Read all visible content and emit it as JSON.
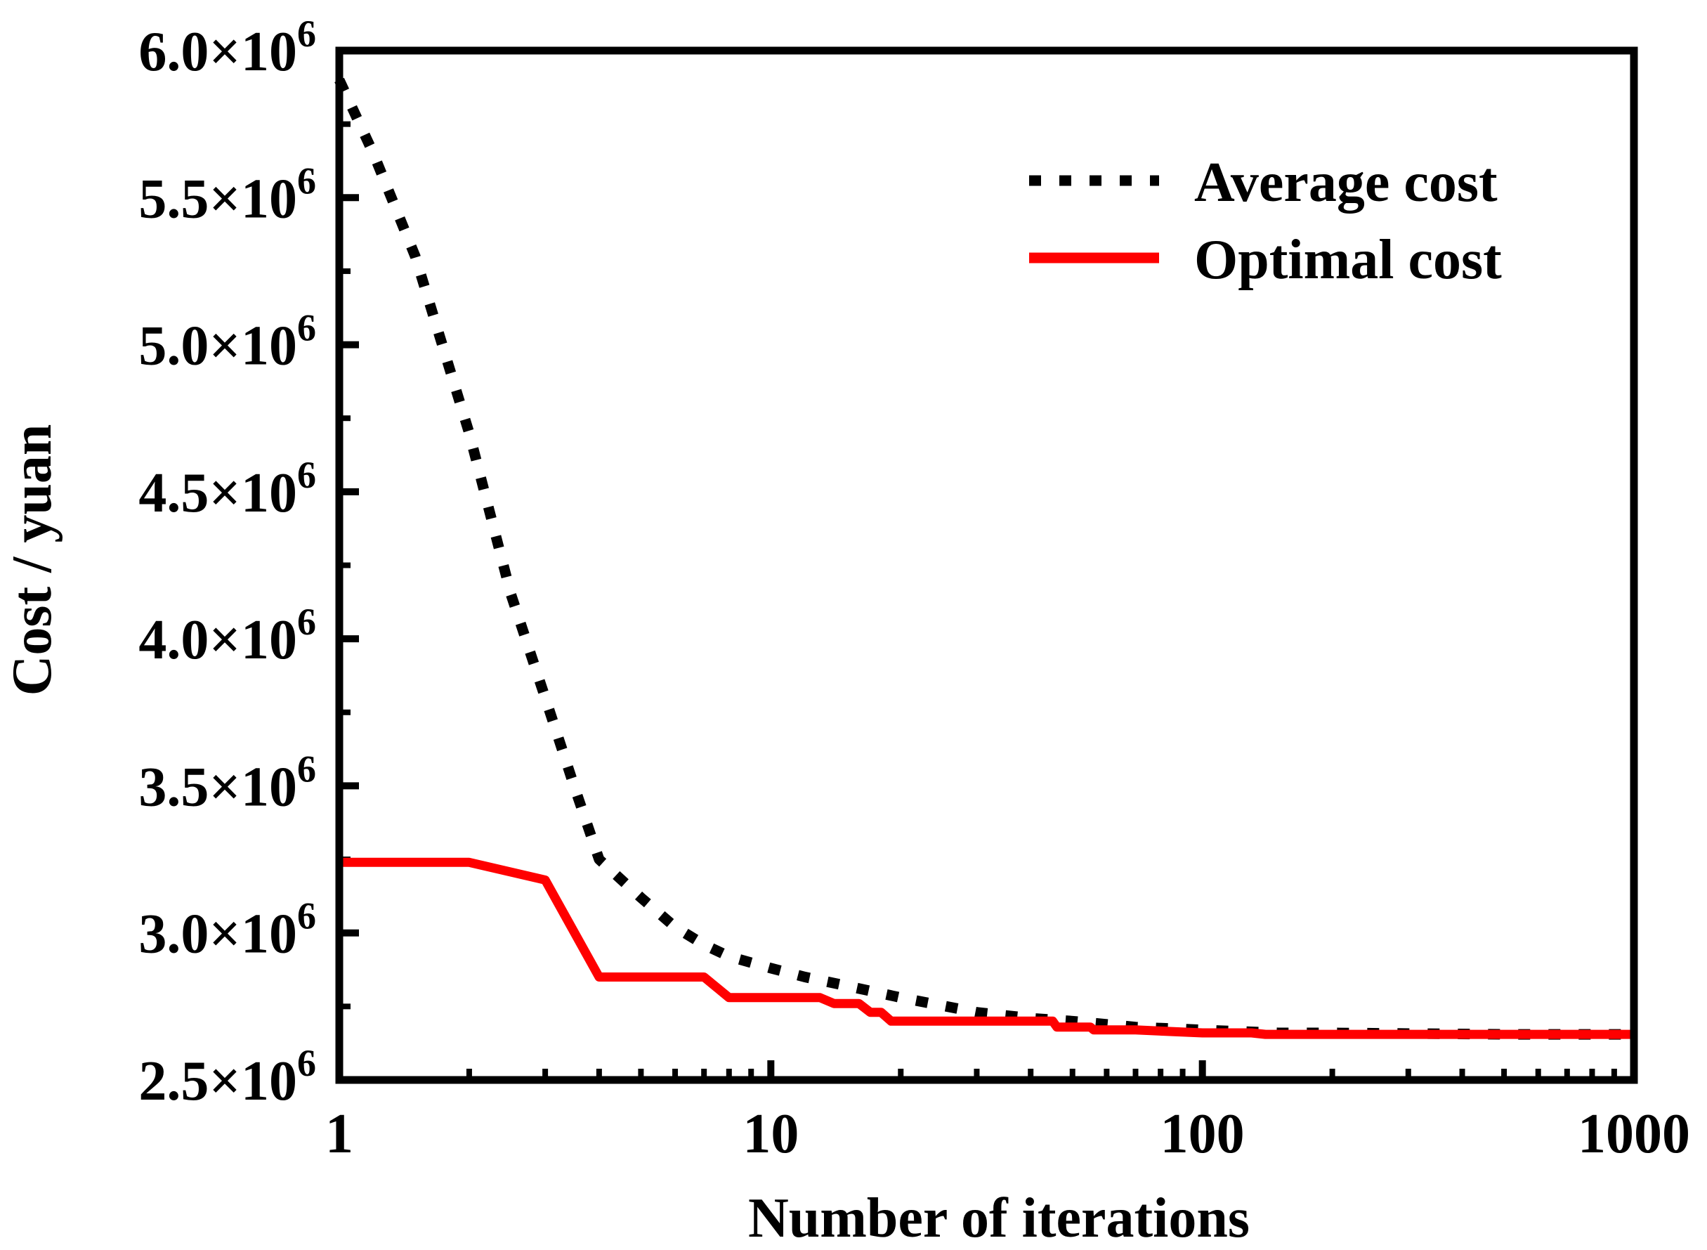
{
  "chart_data": {
    "type": "line",
    "title": "",
    "xlabel": "Number of iterations",
    "ylabel": "Cost / yuan",
    "xscale": "log",
    "xlim": [
      1,
      1000
    ],
    "ylim": [
      2500000,
      6000000
    ],
    "grid": false,
    "legend_position": "top-right",
    "x_ticks": [
      {
        "value": 1,
        "label": "1"
      },
      {
        "value": 10,
        "label": "10"
      },
      {
        "value": 100,
        "label": "100"
      },
      {
        "value": 1000,
        "label": "1000"
      }
    ],
    "y_ticks": [
      {
        "value": 2500000,
        "mantissa": "2.5",
        "times": "×10",
        "exp": "6"
      },
      {
        "value": 3000000,
        "mantissa": "3.0",
        "times": "×10",
        "exp": "6"
      },
      {
        "value": 3500000,
        "mantissa": "3.5",
        "times": "×10",
        "exp": "6"
      },
      {
        "value": 4000000,
        "mantissa": "4.0",
        "times": "×10",
        "exp": "6"
      },
      {
        "value": 4500000,
        "mantissa": "4.5",
        "times": "×10",
        "exp": "6"
      },
      {
        "value": 5000000,
        "mantissa": "5.0",
        "times": "×10",
        "exp": "6"
      },
      {
        "value": 5500000,
        "mantissa": "5.5",
        "times": "×10",
        "exp": "6"
      },
      {
        "value": 6000000,
        "mantissa": "6.0",
        "times": "×10",
        "exp": "6"
      }
    ],
    "series": [
      {
        "name": "Average cost",
        "color": "#000000",
        "style": "dotted",
        "points": [
          [
            1,
            5900000
          ],
          [
            1.2,
            5650000
          ],
          [
            1.5,
            5300000
          ],
          [
            2,
            4700000
          ],
          [
            2.5,
            4150000
          ],
          [
            3,
            3800000
          ],
          [
            3.5,
            3500000
          ],
          [
            4,
            3250000
          ],
          [
            5,
            3120000
          ],
          [
            6,
            3020000
          ],
          [
            7,
            2960000
          ],
          [
            8,
            2920000
          ],
          [
            10,
            2880000
          ],
          [
            12,
            2850000
          ],
          [
            15,
            2820000
          ],
          [
            20,
            2780000
          ],
          [
            30,
            2730000
          ],
          [
            40,
            2710000
          ],
          [
            50,
            2700000
          ],
          [
            70,
            2680000
          ],
          [
            100,
            2670000
          ],
          [
            150,
            2660000
          ],
          [
            200,
            2660000
          ],
          [
            500,
            2655000
          ],
          [
            1000,
            2655000
          ]
        ]
      },
      {
        "name": "Optimal cost",
        "color": "#ff0000",
        "style": "solid",
        "points": [
          [
            1,
            3240000
          ],
          [
            2,
            3240000
          ],
          [
            3,
            3180000
          ],
          [
            4,
            2850000
          ],
          [
            7,
            2850000
          ],
          [
            8,
            2780000
          ],
          [
            13,
            2780000
          ],
          [
            14,
            2760000
          ],
          [
            16,
            2760000
          ],
          [
            17,
            2730000
          ],
          [
            18,
            2730000
          ],
          [
            19,
            2700000
          ],
          [
            45,
            2700000
          ],
          [
            46,
            2680000
          ],
          [
            55,
            2680000
          ],
          [
            56,
            2670000
          ],
          [
            70,
            2670000
          ],
          [
            100,
            2660000
          ],
          [
            130,
            2660000
          ],
          [
            140,
            2655000
          ],
          [
            1000,
            2655000
          ]
        ]
      }
    ]
  }
}
